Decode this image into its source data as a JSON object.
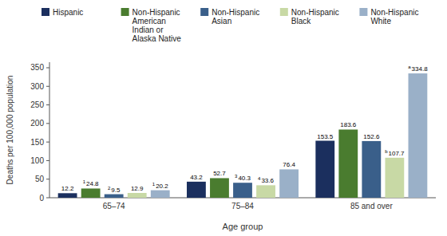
{
  "chart_data": {
    "type": "bar",
    "categories": [
      "65–74",
      "75–84",
      "85 and over"
    ],
    "xlabel": "Age group",
    "ylabel": "Deaths per 100,000 population",
    "ylim": [
      0,
      365
    ],
    "yticks": [
      0,
      50,
      100,
      150,
      200,
      250,
      300,
      350
    ],
    "data_labels": true,
    "legend": "top",
    "series": [
      {
        "name": "Hispanic",
        "color": "#1b2f5e",
        "values": [
          12.2,
          43.2,
          153.5
        ]
      },
      {
        "name": "Non-Hispanic\nAmerican\nIndian or\nAlaska Native",
        "color": "#4a7c2f",
        "values": [
          24.8,
          52.7,
          183.6
        ],
        "footnotes": [
          "1",
          null,
          null
        ]
      },
      {
        "name": "Non-Hispanic\nAsian",
        "color": "#3a5f8a",
        "values": [
          9.5,
          40.3,
          152.6
        ],
        "footnotes": [
          "2",
          "3",
          null
        ]
      },
      {
        "name": "Non-Hispanic\nBlack",
        "color": "#c8d9a5",
        "values": [
          12.9,
          33.6,
          107.7
        ],
        "footnotes": [
          null,
          "4",
          "b"
        ]
      },
      {
        "name": "Non-Hispanic\nWhite",
        "color": "#9ab0c8",
        "values": [
          20.2,
          76.4,
          334.8
        ],
        "footnotes": [
          "1",
          null,
          "a"
        ]
      }
    ]
  }
}
